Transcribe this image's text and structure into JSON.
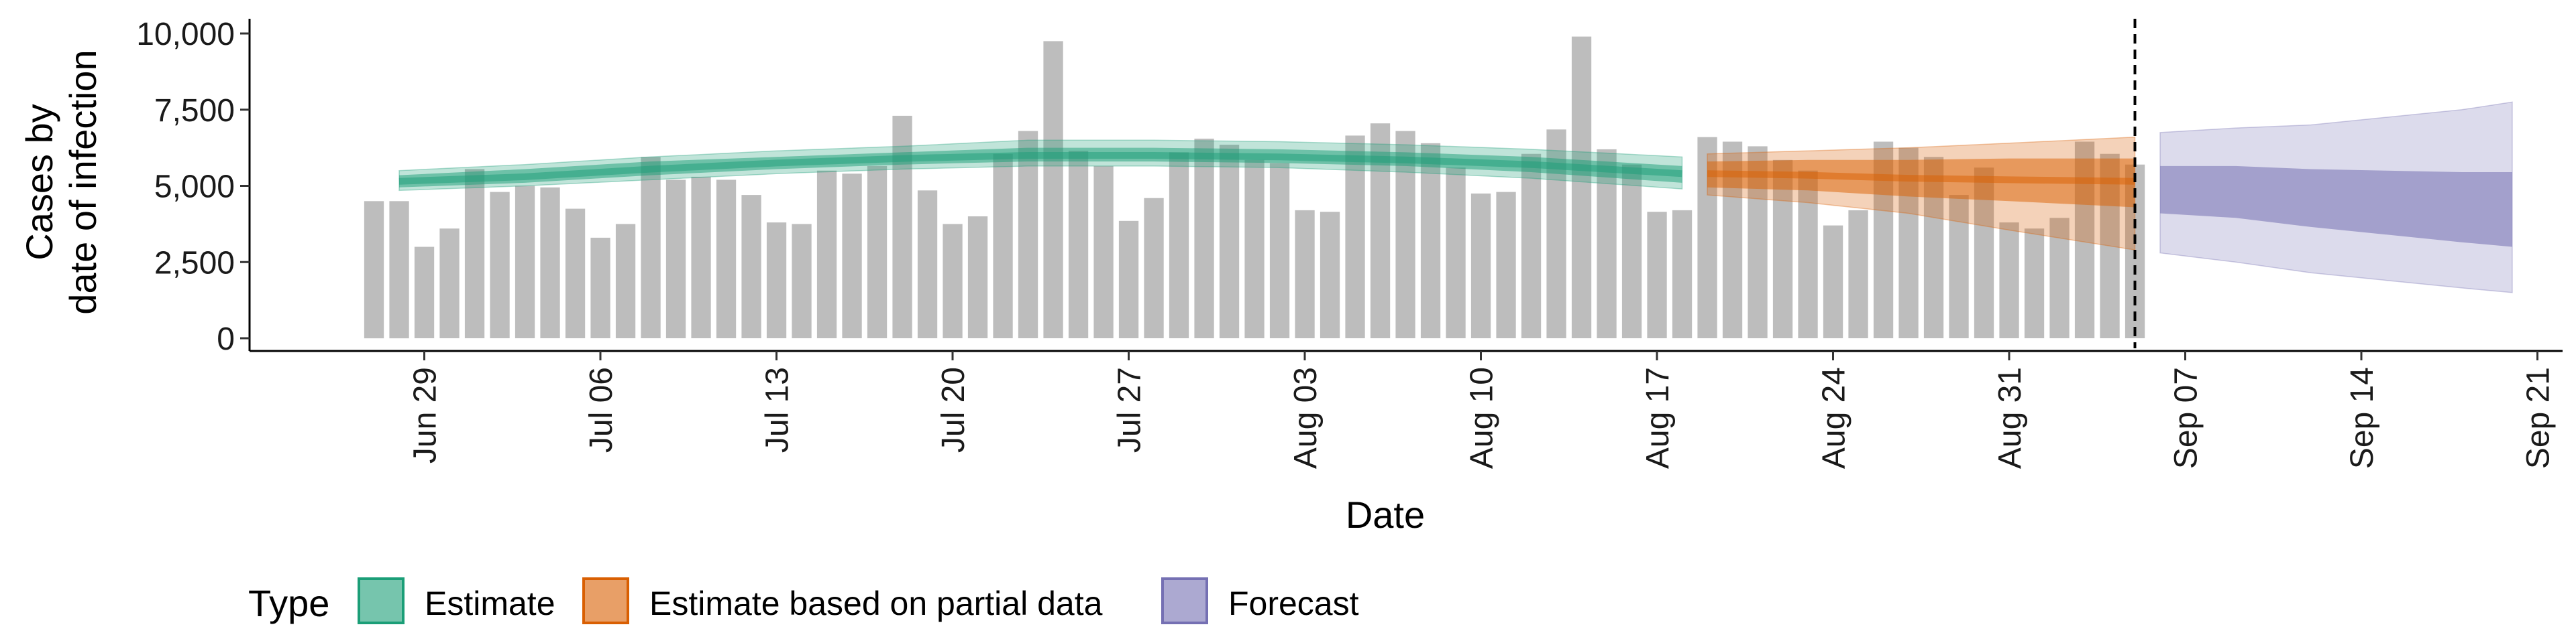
{
  "chart_data": {
    "type": "bar",
    "xlabel": "Date",
    "ylabel_line1": "Cases by",
    "ylabel_line2": "date of infection",
    "ylim": [
      0,
      10000
    ],
    "yticks": [
      0,
      2500,
      5000,
      7500,
      10000
    ],
    "ytick_labels": [
      "0",
      "2,500",
      "5,000",
      "7,500",
      "10,000"
    ],
    "xlim": [
      "2020-06-22",
      "2020-09-22"
    ],
    "xticks": [
      "2020-06-29",
      "2020-07-06",
      "2020-07-13",
      "2020-07-20",
      "2020-07-27",
      "2020-08-03",
      "2020-08-10",
      "2020-08-17",
      "2020-08-24",
      "2020-08-31",
      "2020-09-07",
      "2020-09-14",
      "2020-09-21"
    ],
    "xtick_labels": [
      "Jun 29",
      "Jul 06",
      "Jul 13",
      "Jul 20",
      "Jul 27",
      "Aug 03",
      "Aug 10",
      "Aug 17",
      "Aug 24",
      "Aug 31",
      "Sep 07",
      "Sep 14",
      "Sep 21"
    ],
    "vline_date": "2020-09-05",
    "bars": {
      "dates": [
        "2020-06-27",
        "2020-06-28",
        "2020-06-29",
        "2020-06-30",
        "2020-07-01",
        "2020-07-02",
        "2020-07-03",
        "2020-07-04",
        "2020-07-05",
        "2020-07-06",
        "2020-07-07",
        "2020-07-08",
        "2020-07-09",
        "2020-07-10",
        "2020-07-11",
        "2020-07-12",
        "2020-07-13",
        "2020-07-14",
        "2020-07-15",
        "2020-07-16",
        "2020-07-17",
        "2020-07-18",
        "2020-07-19",
        "2020-07-20",
        "2020-07-21",
        "2020-07-22",
        "2020-07-23",
        "2020-07-24",
        "2020-07-25",
        "2020-07-26",
        "2020-07-27",
        "2020-07-28",
        "2020-07-29",
        "2020-07-30",
        "2020-07-31",
        "2020-08-01",
        "2020-08-02",
        "2020-08-03",
        "2020-08-04",
        "2020-08-05",
        "2020-08-06",
        "2020-08-07",
        "2020-08-08",
        "2020-08-09",
        "2020-08-10",
        "2020-08-11",
        "2020-08-12",
        "2020-08-13",
        "2020-08-14",
        "2020-08-15",
        "2020-08-16",
        "2020-08-17",
        "2020-08-18",
        "2020-08-19",
        "2020-08-20",
        "2020-08-21",
        "2020-08-22",
        "2020-08-23",
        "2020-08-24",
        "2020-08-25",
        "2020-08-26",
        "2020-08-27",
        "2020-08-28",
        "2020-08-29",
        "2020-08-30",
        "2020-08-31",
        "2020-09-01",
        "2020-09-02",
        "2020-09-03",
        "2020-09-04",
        "2020-09-05"
      ],
      "values": [
        4500,
        4500,
        3000,
        3600,
        5550,
        4800,
        5000,
        4950,
        4250,
        3300,
        3750,
        5950,
        5200,
        5300,
        5200,
        4700,
        3800,
        3750,
        5500,
        5400,
        5650,
        7300,
        4850,
        3750,
        4000,
        6050,
        6800,
        9750,
        6150,
        5650,
        3850,
        4600,
        6100,
        6550,
        6350,
        5850,
        5750,
        4200,
        4150,
        6650,
        7050,
        6800,
        6400,
        5600,
        4750,
        4800,
        6050,
        6850,
        9900,
        6200,
        5700,
        4150,
        4200,
        6600,
        6450,
        6300,
        5850,
        5500,
        3700,
        4200,
        6450,
        6250,
        5950,
        4700,
        5600,
        3800,
        3600,
        3950,
        6450,
        6050,
        5700
      ]
    },
    "series": [
      {
        "name": "Estimate",
        "color": "#1b9e77",
        "dates": [
          "2020-06-28",
          "2020-07-03",
          "2020-07-08",
          "2020-07-13",
          "2020-07-18",
          "2020-07-23",
          "2020-07-28",
          "2020-08-02",
          "2020-08-07",
          "2020-08-12",
          "2020-08-18"
        ],
        "median": [
          5150,
          5300,
          5550,
          5750,
          5900,
          6000,
          6000,
          5950,
          5850,
          5700,
          5400
        ],
        "inner_lower": [
          4950,
          5100,
          5350,
          5550,
          5700,
          5800,
          5800,
          5750,
          5650,
          5450,
          5100
        ],
        "inner_upper": [
          5350,
          5550,
          5800,
          5950,
          6100,
          6250,
          6250,
          6200,
          6100,
          5950,
          5650
        ],
        "outer_lower": [
          4850,
          5000,
          5200,
          5400,
          5550,
          5650,
          5650,
          5600,
          5450,
          5250,
          4900
        ],
        "outer_upper": [
          5500,
          5700,
          5950,
          6150,
          6300,
          6500,
          6500,
          6450,
          6350,
          6200,
          5950
        ]
      },
      {
        "name": "Estimate based on partial data",
        "color": "#d95f02",
        "dates": [
          "2020-08-19",
          "2020-08-23",
          "2020-08-27",
          "2020-08-31",
          "2020-09-05"
        ],
        "median": [
          5400,
          5350,
          5250,
          5200,
          5150
        ],
        "inner_lower": [
          4950,
          4850,
          4650,
          4500,
          4300
        ],
        "inner_upper": [
          5800,
          5850,
          5850,
          5900,
          5900
        ],
        "outer_lower": [
          4700,
          4450,
          4100,
          3550,
          2900
        ],
        "outer_upper": [
          6050,
          6150,
          6250,
          6400,
          6600
        ]
      },
      {
        "name": "Forecast",
        "color": "#7570b3",
        "dates": [
          "2020-09-06",
          "2020-09-09",
          "2020-09-12",
          "2020-09-15",
          "2020-09-18",
          "2020-09-20"
        ],
        "inner_lower": [
          4100,
          3950,
          3650,
          3400,
          3150,
          3000
        ],
        "inner_upper": [
          5650,
          5650,
          5550,
          5500,
          5450,
          5450
        ],
        "outer_lower": [
          2800,
          2500,
          2150,
          1900,
          1650,
          1500
        ],
        "outer_upper": [
          6750,
          6900,
          7000,
          7250,
          7500,
          7750
        ]
      }
    ],
    "legend": {
      "title": "Type",
      "position": "bottom-left",
      "entries": [
        {
          "label": "Estimate",
          "color": "#1b9e77"
        },
        {
          "label": "Estimate based on partial data",
          "color": "#d95f02"
        },
        {
          "label": "Forecast",
          "color": "#7570b3"
        }
      ]
    }
  }
}
